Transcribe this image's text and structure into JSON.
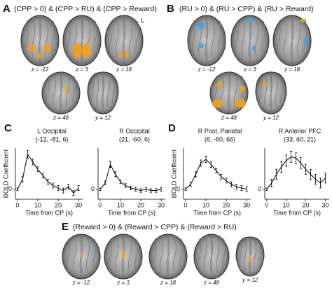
{
  "brain_panels": [
    {
      "label": "A",
      "title": "(CPP > 0) & (CPP > RU) & (CPP > Reward)",
      "side_mark": "L",
      "slices": [
        "z = -12",
        "z = 3",
        "z = 18",
        "z = 48",
        "y = 12"
      ]
    },
    {
      "label": "B",
      "title": "(RU > 0) & (RU > CPP) & (RU > Reward)",
      "slices": [
        "z = -12",
        "z = 3",
        "z = 18",
        "z = 48",
        "y = 12"
      ]
    },
    {
      "label": "E",
      "title": "(Reward > 0) & (Reward > CPP) & (Reward > RU)",
      "slices": [
        "z = -12",
        "z = 3",
        "z = 18",
        "z = 48",
        "y = 12"
      ]
    }
  ],
  "chart_panels": [
    "C",
    "D"
  ],
  "chart_data": [
    {
      "type": "line",
      "title": "L Occipital",
      "subtitle": "(-12, -81, 6)",
      "xlabel": "Time from CP (s)",
      "ylabel": "BOLD Coefficient",
      "x": [
        0,
        2.5,
        5,
        7.5,
        10,
        12.5,
        15,
        17.5,
        20,
        22.5,
        25,
        27.5,
        30
      ],
      "series": [
        {
          "color": "#000000",
          "values": [
            0,
            0.8,
            2.8,
            2.2,
            1.6,
            1.1,
            0.6,
            0.3,
            0.1,
            -0.1,
            0.2,
            -0.3,
            0.1
          ],
          "errors": [
            0.1,
            0.2,
            0.3,
            0.25,
            0.2,
            0.2,
            0.2,
            0.2,
            0.2,
            0.2,
            0.2,
            0.2,
            0.2
          ]
        }
      ],
      "xlim": [
        -1,
        32
      ],
      "ylim": [
        -0.8,
        3.3
      ],
      "xticks": [
        0,
        10,
        20,
        30
      ],
      "yticks": [
        0
      ]
    },
    {
      "type": "line",
      "title": "R Occipital",
      "subtitle": "(21, -60, 6)",
      "xlabel": "Time from CP (s)",
      "x": [
        0,
        2.5,
        5,
        7.5,
        10,
        12.5,
        15,
        17.5,
        20,
        22.5,
        25,
        27.5,
        30
      ],
      "series": [
        {
          "color": "#000000",
          "values": [
            0,
            0.5,
            2.0,
            1.2,
            0.6,
            0.3,
            0.1,
            0,
            -0.1,
            0,
            -0.1,
            -0.1,
            0
          ],
          "errors": [
            0.1,
            0.15,
            0.25,
            0.2,
            0.15,
            0.15,
            0.15,
            0.15,
            0.15,
            0.15,
            0.15,
            0.15,
            0.15
          ]
        }
      ],
      "xlim": [
        -1,
        32
      ],
      "ylim": [
        -0.8,
        3.3
      ],
      "xticks": [
        0,
        10,
        20,
        30
      ],
      "yticks": [
        0
      ]
    },
    {
      "type": "line",
      "title": "R Post. Parietal",
      "subtitle": "(6, -60, 66)",
      "xlabel": "Time from CP (s)",
      "ylabel": "BOLD Coefficient",
      "x": [
        0,
        2.5,
        5,
        7.5,
        10,
        12.5,
        15,
        17.5,
        20,
        22.5,
        25,
        27.5,
        30
      ],
      "series": [
        {
          "color": "#000000",
          "values": [
            0,
            0.4,
            1.2,
            2.1,
            2.4,
            2.0,
            1.5,
            1.0,
            0.7,
            0.4,
            0.2,
            0.1,
            0
          ],
          "errors": [
            0.1,
            0.15,
            0.2,
            0.25,
            0.25,
            0.25,
            0.2,
            0.2,
            0.2,
            0.2,
            0.2,
            0.2,
            0.2
          ]
        }
      ],
      "xlim": [
        -1,
        32
      ],
      "ylim": [
        -0.8,
        3.3
      ],
      "xticks": [
        0,
        10,
        20,
        30
      ],
      "yticks": [
        0
      ]
    },
    {
      "type": "line",
      "title": "R Anterior PFC",
      "subtitle": "(33, 60, 21)",
      "xlabel": "Time from CP (s)",
      "x": [
        0,
        2.5,
        5,
        7.5,
        10,
        12.5,
        15,
        17.5,
        20,
        22.5,
        25,
        27.5,
        30
      ],
      "series": [
        {
          "color": "#000000",
          "values": [
            0,
            0.5,
            1.2,
            1.8,
            2.3,
            2.6,
            2.5,
            2.1,
            1.6,
            1.2,
            0.8,
            0.5,
            0.9
          ],
          "errors": [
            0.1,
            0.3,
            0.4,
            0.45,
            0.45,
            0.45,
            0.45,
            0.45,
            0.4,
            0.4,
            0.4,
            0.4,
            0.4
          ]
        }
      ],
      "xlim": [
        -1,
        32
      ],
      "ylim": [
        -0.8,
        3.3
      ],
      "xticks": [
        0,
        10,
        20,
        30
      ],
      "yticks": [
        0
      ]
    }
  ]
}
